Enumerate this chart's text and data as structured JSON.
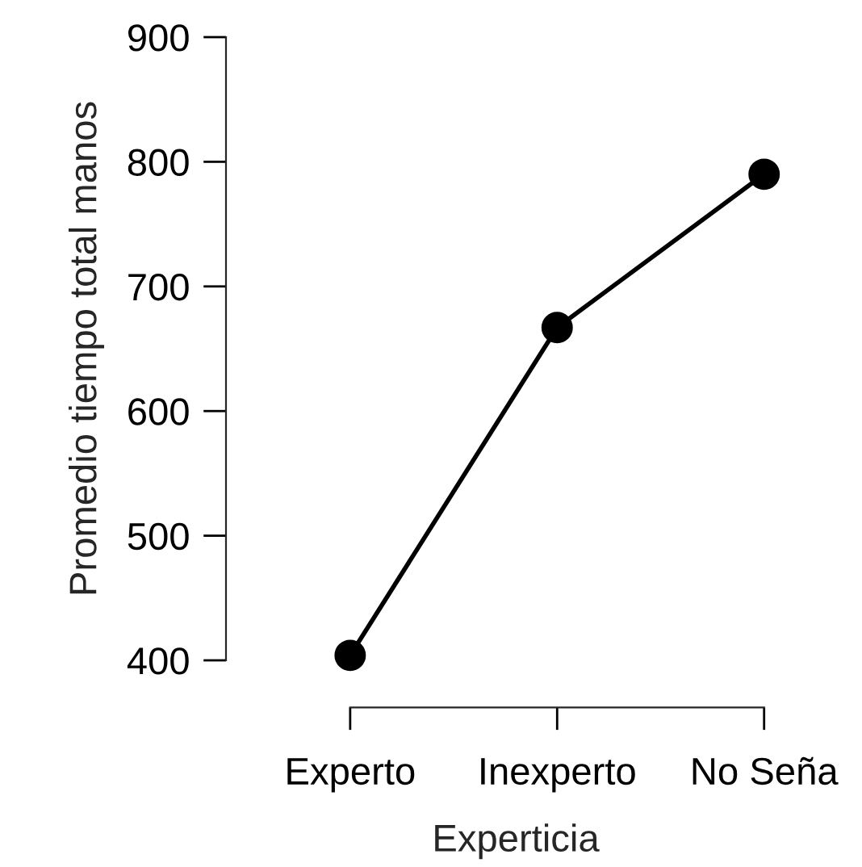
{
  "chart_data": {
    "type": "line",
    "xlabel": "Experticia",
    "ylabel": "Promedio tiempo total manos",
    "categories": [
      "Experto",
      "Inexperto",
      "No Seña"
    ],
    "series": [
      {
        "color": "#000000",
        "values": [
          404,
          667,
          790
        ]
      }
    ],
    "ylim": [
      400,
      900
    ],
    "yticks": [
      400,
      500,
      600,
      700,
      800,
      900
    ],
    "marker": "circle",
    "line_style": "solid",
    "grid": false,
    "legend": false
  }
}
